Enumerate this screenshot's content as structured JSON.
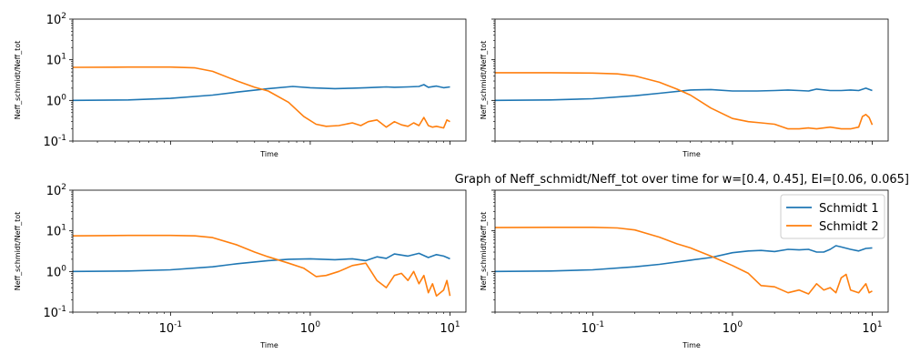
{
  "figure": {
    "suptitle": "Graph of Neff_schmidt/Neff_tot over time for w=[0.4, 0.45], EI=[0.06, 0.065]"
  },
  "legend": {
    "entries": [
      "Schmidt 1",
      "Schmidt 2"
    ],
    "placement": "upper right of bottom-right panel"
  },
  "colors": {
    "schmidt1": "#1f77b4",
    "schmidt2": "#ff7f0e"
  },
  "chart_data": [
    {
      "type": "line",
      "panel": "top-left",
      "xlabel": "Time",
      "ylabel": "Neff_schmidt/Neff_tot",
      "xscale": "log",
      "yscale": "log",
      "xlim": [
        0.02,
        13
      ],
      "ylim": [
        0.1,
        100
      ],
      "yticks": [
        "10^-1",
        "10^0",
        "10^1",
        "10^2"
      ],
      "xticks": [],
      "series": [
        {
          "name": "Schmidt 1",
          "color": "#1f77b4",
          "x": [
            0.02,
            0.05,
            0.1,
            0.2,
            0.3,
            0.5,
            0.75,
            1.0,
            1.5,
            2.0,
            2.5,
            3.0,
            3.5,
            4.0,
            5.0,
            6.0,
            6.5,
            7.0,
            8.0,
            9.0,
            10.0
          ],
          "y": [
            1.0,
            1.03,
            1.12,
            1.35,
            1.6,
            1.95,
            2.2,
            2.05,
            1.95,
            2.0,
            2.05,
            2.1,
            2.15,
            2.1,
            2.15,
            2.2,
            2.45,
            2.1,
            2.25,
            2.05,
            2.15
          ]
        },
        {
          "name": "Schmidt 2",
          "color": "#ff7f0e",
          "x": [
            0.02,
            0.05,
            0.1,
            0.15,
            0.2,
            0.3,
            0.4,
            0.5,
            0.7,
            0.9,
            1.1,
            1.3,
            1.6,
            2.0,
            2.3,
            2.6,
            3.0,
            3.5,
            4.0,
            4.5,
            5.0,
            5.5,
            6.0,
            6.5,
            7.0,
            7.5,
            8.0,
            9.0,
            9.5,
            10.0
          ],
          "y": [
            6.5,
            6.6,
            6.6,
            6.3,
            5.2,
            3.0,
            2.1,
            1.7,
            0.9,
            0.4,
            0.26,
            0.23,
            0.24,
            0.28,
            0.24,
            0.3,
            0.33,
            0.22,
            0.3,
            0.25,
            0.23,
            0.28,
            0.24,
            0.38,
            0.24,
            0.22,
            0.23,
            0.21,
            0.33,
            0.3
          ]
        }
      ]
    },
    {
      "type": "line",
      "panel": "top-right",
      "xlabel": "Time",
      "ylabel": "Neff_schmidt/Neff_tot",
      "xscale": "log",
      "yscale": "log",
      "xlim": [
        0.02,
        13
      ],
      "ylim": [
        0.1,
        100
      ],
      "yticks": [],
      "xticks": [],
      "series": [
        {
          "name": "Schmidt 1",
          "color": "#1f77b4",
          "x": [
            0.02,
            0.05,
            0.1,
            0.2,
            0.3,
            0.5,
            0.7,
            1.0,
            1.5,
            2.0,
            2.5,
            3.0,
            3.5,
            4.0,
            5.0,
            6.0,
            7.0,
            8.0,
            9.0,
            10.0
          ],
          "y": [
            1.0,
            1.03,
            1.1,
            1.3,
            1.5,
            1.8,
            1.85,
            1.7,
            1.7,
            1.75,
            1.8,
            1.75,
            1.7,
            1.9,
            1.75,
            1.75,
            1.8,
            1.75,
            2.0,
            1.75
          ]
        },
        {
          "name": "Schmidt 2",
          "color": "#ff7f0e",
          "x": [
            0.02,
            0.05,
            0.1,
            0.15,
            0.2,
            0.3,
            0.4,
            0.5,
            0.7,
            1.0,
            1.3,
            1.6,
            2.0,
            2.5,
            3.0,
            3.5,
            4.0,
            5.0,
            6.0,
            7.0,
            8.0,
            8.5,
            9.0,
            9.5,
            10.0
          ],
          "y": [
            4.8,
            4.8,
            4.7,
            4.5,
            4.0,
            2.8,
            1.9,
            1.35,
            0.65,
            0.36,
            0.3,
            0.28,
            0.26,
            0.2,
            0.2,
            0.21,
            0.2,
            0.22,
            0.2,
            0.2,
            0.22,
            0.4,
            0.45,
            0.38,
            0.25
          ]
        }
      ]
    },
    {
      "type": "line",
      "panel": "bottom-left",
      "xlabel": "Time",
      "ylabel": "Neff_schmidt/Neff_tot",
      "xscale": "log",
      "yscale": "log",
      "xlim": [
        0.02,
        13
      ],
      "ylim": [
        0.1,
        100
      ],
      "yticks": [
        "10^-1",
        "10^0",
        "10^1",
        "10^2"
      ],
      "xticks": [
        "10^-1",
        "10^0",
        "10^1"
      ],
      "series": [
        {
          "name": "Schmidt 1",
          "color": "#1f77b4",
          "x": [
            0.02,
            0.05,
            0.1,
            0.2,
            0.3,
            0.5,
            0.7,
            1.0,
            1.5,
            2.0,
            2.5,
            3.0,
            3.5,
            4.0,
            5.0,
            6.0,
            7.0,
            8.0,
            9.0,
            10.0
          ],
          "y": [
            1.0,
            1.03,
            1.1,
            1.3,
            1.55,
            1.85,
            2.0,
            2.05,
            1.95,
            2.05,
            1.85,
            2.3,
            2.1,
            2.7,
            2.4,
            2.8,
            2.2,
            2.6,
            2.4,
            2.05
          ]
        },
        {
          "name": "Schmidt 2",
          "color": "#ff7f0e",
          "x": [
            0.02,
            0.05,
            0.1,
            0.15,
            0.2,
            0.3,
            0.4,
            0.5,
            0.7,
            0.9,
            1.1,
            1.3,
            1.6,
            2.0,
            2.5,
            3.0,
            3.5,
            4.0,
            4.5,
            5.0,
            5.5,
            6.0,
            6.5,
            7.0,
            7.5,
            8.0,
            9.0,
            9.5,
            10.0
          ],
          "y": [
            7.5,
            7.7,
            7.7,
            7.5,
            6.8,
            4.5,
            3.0,
            2.3,
            1.6,
            1.2,
            0.75,
            0.8,
            1.0,
            1.4,
            1.6,
            0.6,
            0.4,
            0.8,
            0.9,
            0.6,
            1.0,
            0.5,
            0.8,
            0.3,
            0.5,
            0.25,
            0.35,
            0.6,
            0.25
          ]
        }
      ]
    },
    {
      "type": "line",
      "panel": "bottom-right",
      "xlabel": "Time",
      "ylabel": "Neff_schmidt/Neff_tot",
      "xscale": "log",
      "yscale": "log",
      "xlim": [
        0.02,
        13
      ],
      "ylim": [
        0.1,
        100
      ],
      "yticks": [],
      "xticks": [
        "10^-1",
        "10^0",
        "10^1"
      ],
      "series": [
        {
          "name": "Schmidt 1",
          "color": "#1f77b4",
          "x": [
            0.02,
            0.05,
            0.1,
            0.2,
            0.3,
            0.5,
            0.7,
            1.0,
            1.3,
            1.6,
            2.0,
            2.5,
            3.0,
            3.5,
            4.0,
            4.5,
            5.0,
            5.5,
            6.0,
            7.0,
            8.0,
            9.0,
            10.0
          ],
          "y": [
            1.0,
            1.03,
            1.1,
            1.3,
            1.5,
            1.9,
            2.2,
            2.9,
            3.2,
            3.3,
            3.1,
            3.5,
            3.4,
            3.5,
            3.0,
            3.0,
            3.5,
            4.3,
            4.0,
            3.5,
            3.2,
            3.7,
            3.8
          ]
        },
        {
          "name": "Schmidt 2",
          "color": "#ff7f0e",
          "x": [
            0.02,
            0.05,
            0.1,
            0.15,
            0.2,
            0.3,
            0.4,
            0.5,
            0.7,
            1.0,
            1.3,
            1.6,
            2.0,
            2.5,
            3.0,
            3.5,
            4.0,
            4.5,
            5.0,
            5.5,
            6.0,
            6.5,
            7.0,
            8.0,
            9.0,
            9.5,
            10.0
          ],
          "y": [
            12,
            12.2,
            12.2,
            11.8,
            10.5,
            7.0,
            4.8,
            3.8,
            2.4,
            1.4,
            0.9,
            0.45,
            0.42,
            0.3,
            0.35,
            0.28,
            0.5,
            0.35,
            0.4,
            0.3,
            0.7,
            0.85,
            0.35,
            0.3,
            0.5,
            0.3,
            0.33
          ]
        }
      ]
    }
  ]
}
